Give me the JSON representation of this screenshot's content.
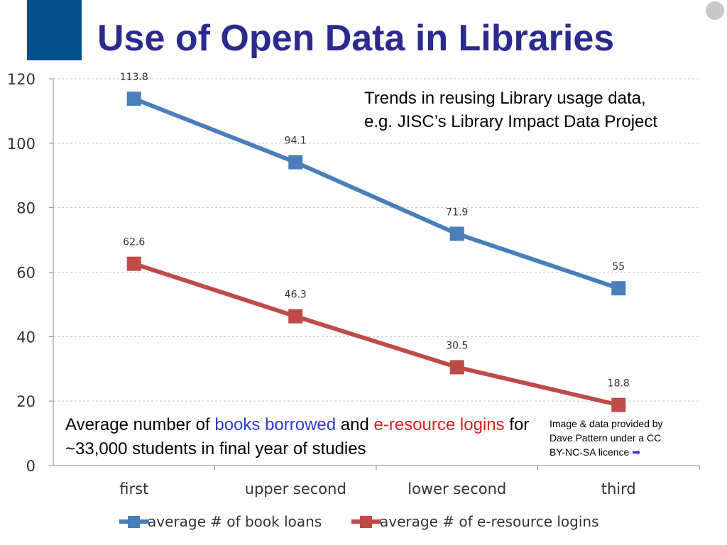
{
  "header": {
    "title": "Use of Open Data in Libraries"
  },
  "annotations": {
    "trend_line1": "Trends in reusing Library usage data,",
    "trend_line2": "e.g. JISC’s Library Impact Data Project",
    "caption_part1": "Average number of ",
    "caption_books": "books borrowed",
    "caption_and": " and ",
    "caption_eres": "e-resource logins",
    "caption_part2": " for ~33,000 students in final year of studies",
    "credit_line1": "Image & data provided by",
    "credit_line2": "Dave Pattern under a CC",
    "credit_line3": "BY-NC-SA licence",
    "credit_arrow": "➡"
  },
  "colors": {
    "title": "#2b2a8e",
    "series_books": "#4a7ebb",
    "series_logins": "#be4b48"
  },
  "chart_data": {
    "type": "line",
    "categories": [
      "first",
      "upper second",
      "lower second",
      "third"
    ],
    "series": [
      {
        "name": "average # of book loans",
        "values": [
          113.8,
          94.1,
          71.9,
          55
        ],
        "labels": [
          "113.8",
          "94.1",
          "71.9",
          "55"
        ]
      },
      {
        "name": "average # of e-resource logins",
        "values": [
          62.6,
          46.3,
          30.5,
          18.8
        ],
        "labels": [
          "62.6",
          "46.3",
          "30.5",
          "18.8"
        ]
      }
    ],
    "yticks": [
      "0",
      "20",
      "40",
      "60",
      "80",
      "100",
      "120"
    ],
    "ylim": [
      0,
      120
    ],
    "grid": true,
    "legend": "bottom"
  }
}
